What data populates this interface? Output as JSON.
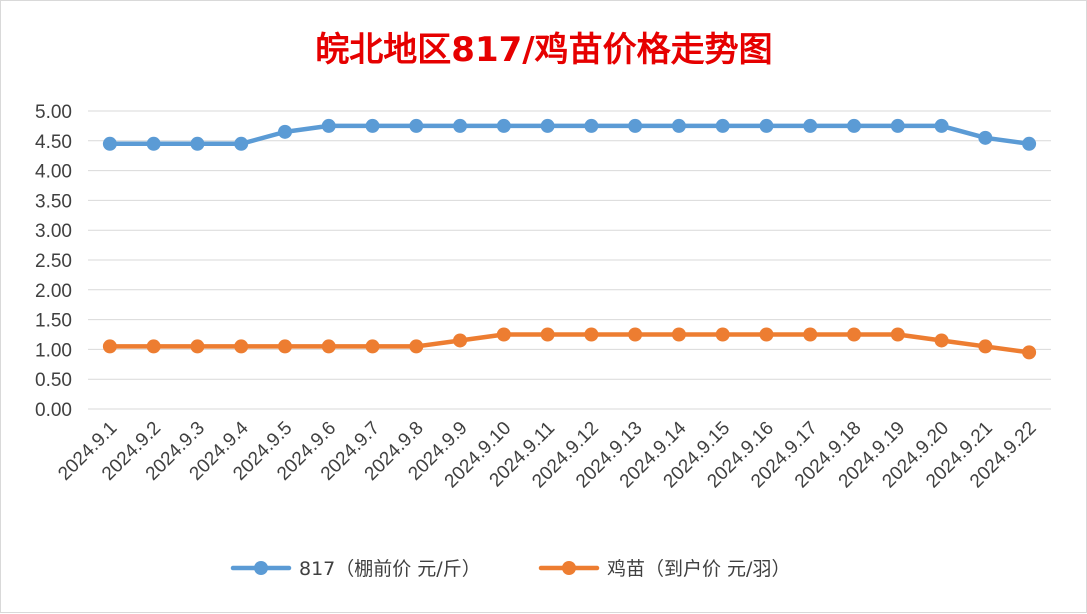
{
  "chart_data": {
    "type": "line",
    "title": "皖北地区817/鸡苗价格走势图",
    "xlabel": "",
    "ylabel": "",
    "categories": [
      "2024.9.1",
      "2024.9.2",
      "2024.9.3",
      "2024.9.4",
      "2024.9.5",
      "2024.9.6",
      "2024.9.7",
      "2024.9.8",
      "2024.9.9",
      "2024.9.10",
      "2024.9.11",
      "2024.9.12",
      "2024.9.13",
      "2024.9.14",
      "2024.9.15",
      "2024.9.16",
      "2024.9.17",
      "2024.9.18",
      "2024.9.19",
      "2024.9.20",
      "2024.9.21",
      "2024.9.22"
    ],
    "y_ticks": [
      "0.00",
      "0.50",
      "1.00",
      "1.50",
      "2.00",
      "2.50",
      "3.00",
      "3.50",
      "4.00",
      "4.50",
      "5.00"
    ],
    "ylim": [
      0,
      5
    ],
    "grid": true,
    "legend_position": "bottom",
    "series": [
      {
        "name": "817（棚前价 元/斤）",
        "color": "#5b9bd5",
        "values": [
          4.45,
          4.45,
          4.45,
          4.45,
          4.65,
          4.75,
          4.75,
          4.75,
          4.75,
          4.75,
          4.75,
          4.75,
          4.75,
          4.75,
          4.75,
          4.75,
          4.75,
          4.75,
          4.75,
          4.75,
          4.55,
          4.45
        ]
      },
      {
        "name": "鸡苗（到户价 元/羽）",
        "color": "#ed7d31",
        "values": [
          1.05,
          1.05,
          1.05,
          1.05,
          1.05,
          1.05,
          1.05,
          1.05,
          1.15,
          1.25,
          1.25,
          1.25,
          1.25,
          1.25,
          1.25,
          1.25,
          1.25,
          1.25,
          1.25,
          1.15,
          1.05,
          0.95
        ]
      }
    ]
  }
}
